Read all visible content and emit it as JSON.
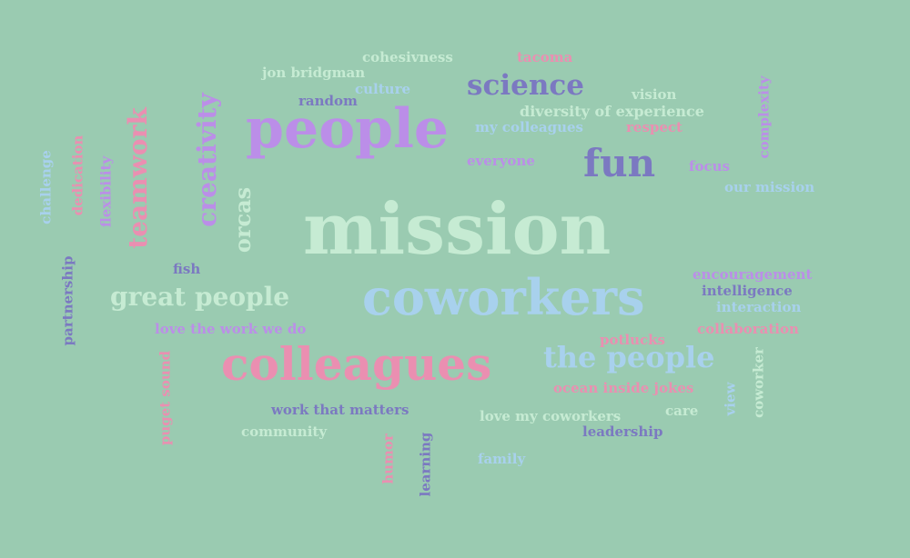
{
  "words": {
    "mission": "mission",
    "coworkers": "coworkers",
    "colleagues": "colleagues",
    "people": "people",
    "fun": "fun",
    "science": "science",
    "the_people": "the people",
    "great_people": "great people",
    "teamwork": "teamwork",
    "creativity": "creativity",
    "orcas": "orcas",
    "cohesivness": "cohesivness",
    "tacoma": "tacoma",
    "jon_bridgman": "jon bridgman",
    "culture": "culture",
    "random": "random",
    "vision": "vision",
    "diversity_of_experience": "diversity of experience",
    "my_colleagues": "my colleagues",
    "respect": "respect",
    "complexity": "complexity",
    "everyone": "everyone",
    "focus": "focus",
    "our_mission": "our mission",
    "challenge": "challenge",
    "dedication": "dedication",
    "flexibility": "flexibility",
    "fish": "fish",
    "partnership": "partnership",
    "love_the_work_we_do": "love the work we do",
    "encouragement": "encouragement",
    "intelligence": "intelligence",
    "interaction": "interaction",
    "collaboration": "collaboration",
    "potlucks": "potlucks",
    "ocean_inside_jokes": "ocean inside jokes",
    "care": "care",
    "view": "view",
    "coworker": "coworker",
    "puget_sound": "puget sound",
    "work_that_matters": "work that matters",
    "community": "community",
    "humor": "humor",
    "learning": "learning",
    "love_my_coworkers": "love my coworkers",
    "leadership": "leadership",
    "family": "family"
  },
  "colors": {
    "background": "#9acbb1",
    "mint": "#c6ebd3",
    "pink": "#ea8fb1",
    "lilac": "#bb8ee8",
    "blue": "#a8d1ed",
    "indigo": "#7b79c1"
  }
}
